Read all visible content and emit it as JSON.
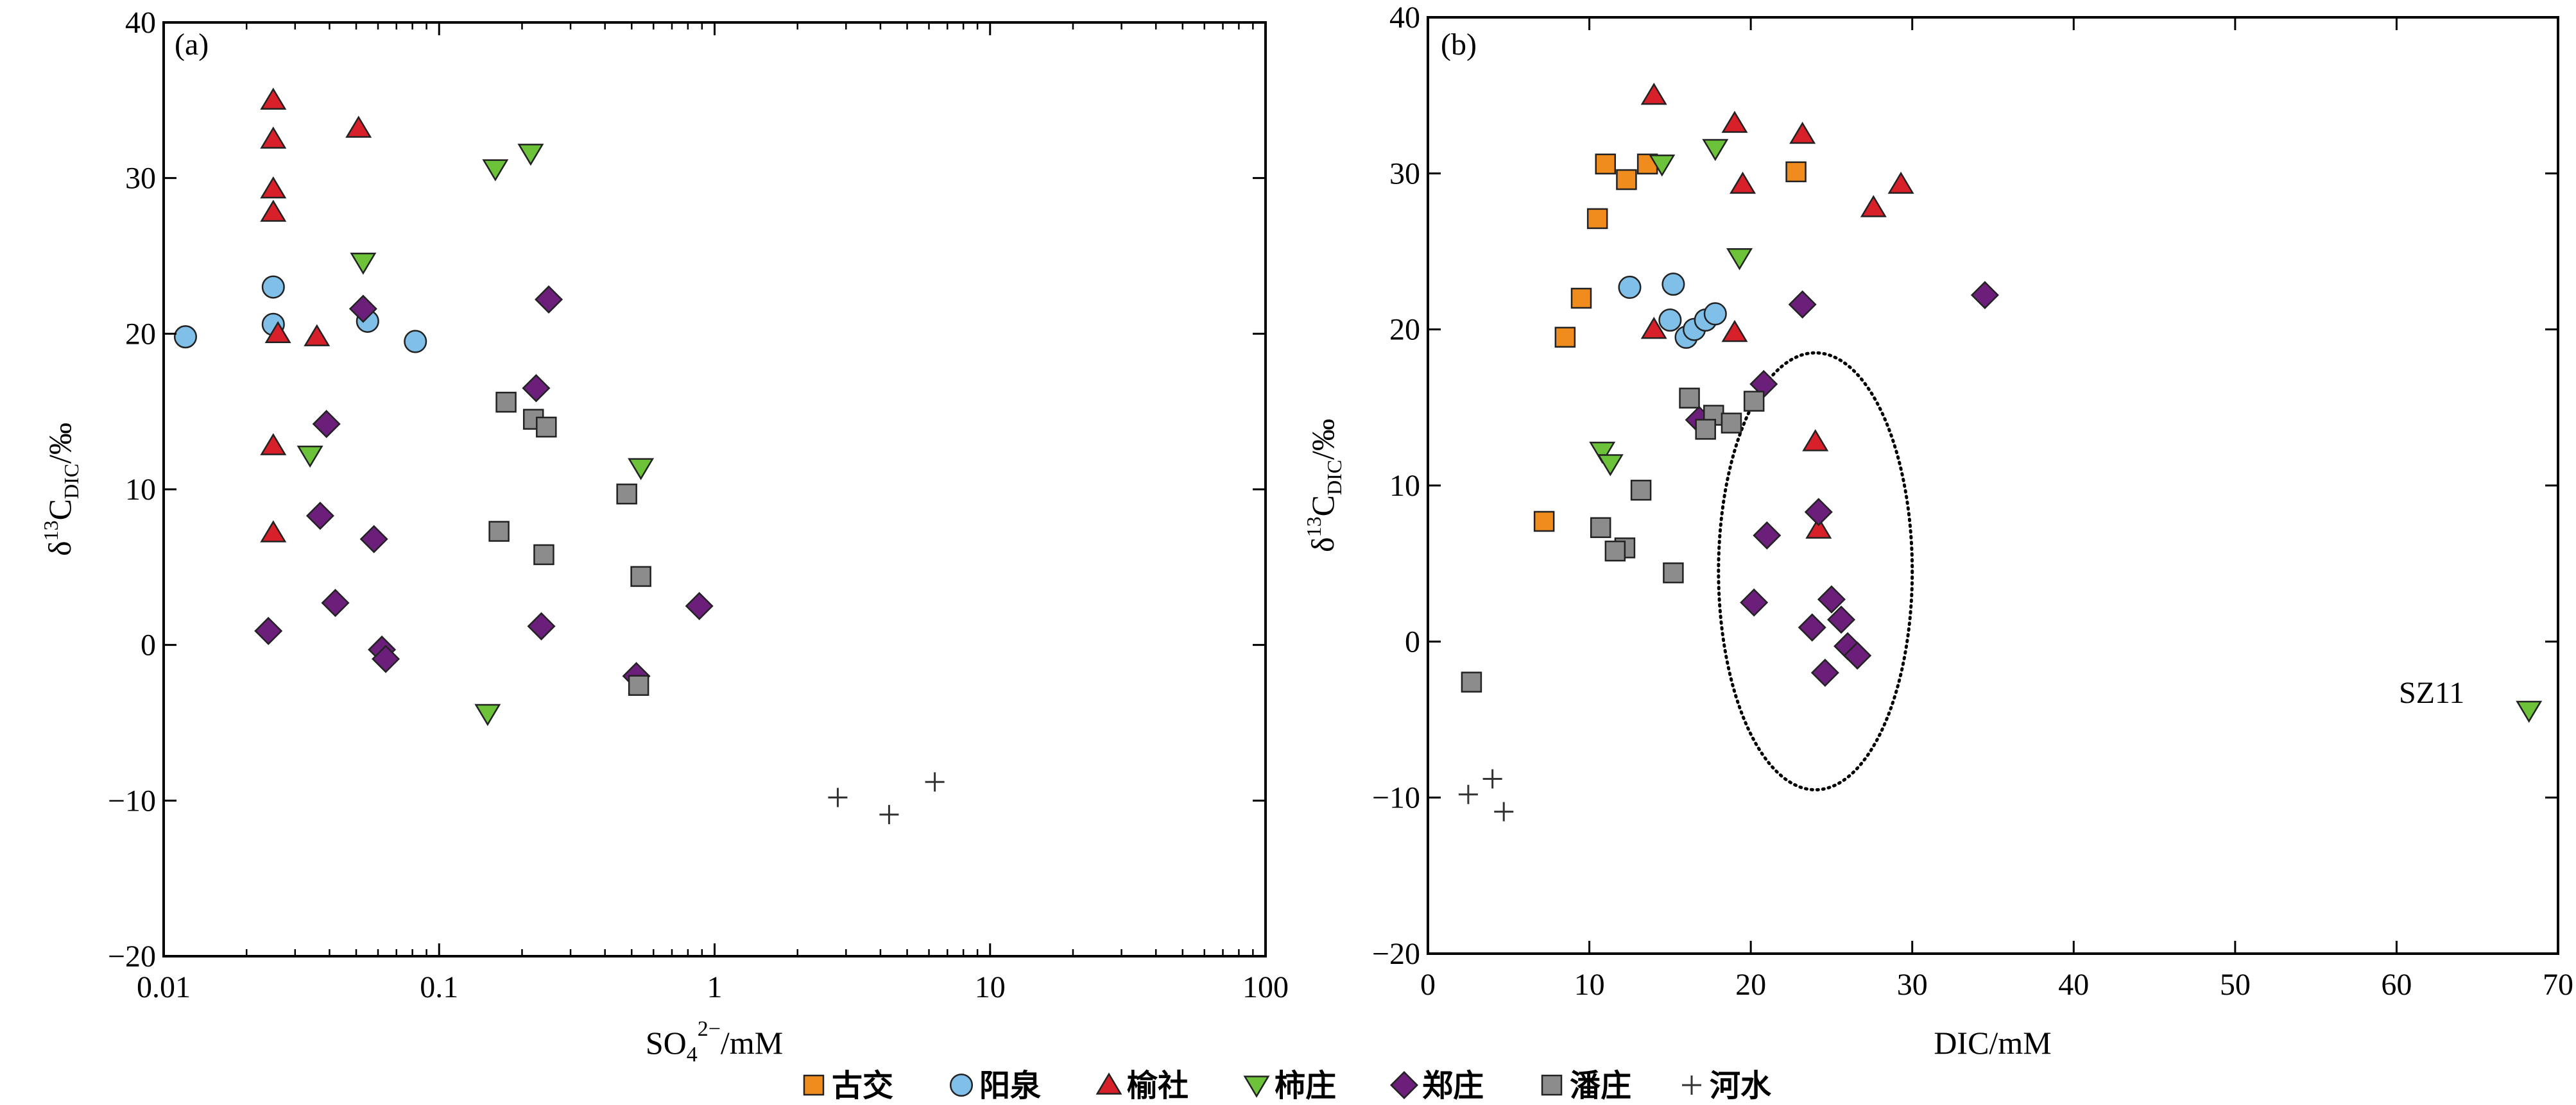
{
  "legend": [
    {
      "label": "古交",
      "shape": "square",
      "color": "#f08c1e"
    },
    {
      "label": "阳泉",
      "shape": "circle",
      "color": "#7fbfe8"
    },
    {
      "label": "榆社",
      "shape": "triangle-up",
      "color": "#d7202a"
    },
    {
      "label": "柿庄",
      "shape": "triangle-down",
      "color": "#6cc33a"
    },
    {
      "label": "郑庄",
      "shape": "diamond",
      "color": "#6b1f7a"
    },
    {
      "label": "潘庄",
      "shape": "square",
      "color": "#8c8c8c"
    },
    {
      "label": "河水",
      "shape": "plus",
      "color": "#000000"
    }
  ],
  "chart_data": [
    {
      "type": "scatter",
      "panel_label": "(a)",
      "xlabel_main": "SO",
      "xlabel_sub": "4",
      "xlabel_sup": "2−",
      "xlabel_rest": "/mM",
      "ylabel_main": "δ",
      "ylabel_sup": "13",
      "ylabel_c": "C",
      "ylabel_sub": "DIC",
      "ylabel_rest": "/‰",
      "xscale": "log",
      "xlim": [
        0.01,
        100
      ],
      "ylim": [
        -20,
        40
      ],
      "xticks": [
        0.01,
        0.1,
        1,
        10,
        100
      ],
      "xtick_labels": [
        "0.01",
        "0.1",
        "1",
        "10",
        "100"
      ],
      "yticks": [
        -20,
        -10,
        0,
        10,
        20,
        30,
        40
      ],
      "ytick_labels": [
        "−20",
        "−10",
        "0",
        "10",
        "20",
        "30",
        "40"
      ],
      "series": [
        {
          "name": "阳泉",
          "points": [
            [
              0.012,
              19.8
            ],
            [
              0.025,
              23.0
            ],
            [
              0.025,
              20.6
            ],
            [
              0.055,
              20.8
            ],
            [
              0.082,
              19.5
            ]
          ]
        },
        {
          "name": "榆社",
          "points": [
            [
              0.025,
              35.0
            ],
            [
              0.025,
              32.5
            ],
            [
              0.025,
              29.3
            ],
            [
              0.025,
              27.8
            ],
            [
              0.026,
              20.0
            ],
            [
              0.036,
              19.8
            ],
            [
              0.025,
              12.8
            ],
            [
              0.025,
              7.2
            ],
            [
              0.051,
              33.2
            ]
          ]
        },
        {
          "name": "柿庄",
          "points": [
            [
              0.034,
              12.2
            ],
            [
              0.053,
              24.6
            ],
            [
              0.16,
              30.6
            ],
            [
              0.215,
              31.6
            ],
            [
              0.15,
              -4.4
            ],
            [
              0.54,
              11.4
            ]
          ]
        },
        {
          "name": "郑庄",
          "points": [
            [
              0.053,
              21.6
            ],
            [
              0.039,
              14.2
            ],
            [
              0.037,
              8.3
            ],
            [
              0.058,
              6.8
            ],
            [
              0.042,
              2.7
            ],
            [
              0.024,
              0.9
            ],
            [
              0.062,
              -0.3
            ],
            [
              0.064,
              -0.9
            ],
            [
              0.25,
              22.2
            ],
            [
              0.225,
              16.5
            ],
            [
              0.235,
              1.2
            ],
            [
              0.52,
              -2.0
            ],
            [
              0.88,
              2.5
            ]
          ]
        },
        {
          "name": "潘庄",
          "points": [
            [
              0.175,
              15.6
            ],
            [
              0.22,
              14.5
            ],
            [
              0.245,
              14.0
            ],
            [
              0.165,
              7.3
            ],
            [
              0.24,
              5.8
            ],
            [
              0.48,
              9.7
            ],
            [
              0.54,
              4.4
            ],
            [
              0.53,
              -2.6
            ]
          ]
        },
        {
          "name": "河水",
          "points": [
            [
              2.8,
              -9.8
            ],
            [
              4.3,
              -10.9
            ],
            [
              6.3,
              -8.8
            ]
          ]
        }
      ]
    },
    {
      "type": "scatter",
      "panel_label": "(b)",
      "xlabel": "DIC/mM",
      "ylabel_main": "δ",
      "ylabel_sup": "13",
      "ylabel_c": "C",
      "ylabel_sub": "DIC",
      "ylabel_rest": "/‰",
      "xlim": [
        0,
        70
      ],
      "ylim": [
        -20,
        40
      ],
      "xticks": [
        0,
        10,
        20,
        30,
        40,
        50,
        60,
        70
      ],
      "xtick_labels": [
        "0",
        "10",
        "20",
        "30",
        "40",
        "50",
        "60",
        "70"
      ],
      "yticks": [
        -20,
        -10,
        0,
        10,
        20,
        30,
        40
      ],
      "ytick_labels": [
        "−20",
        "−10",
        "0",
        "10",
        "20",
        "30",
        "40"
      ],
      "annotation": {
        "text": "SZ11",
        "x": 68,
        "y": -4.4
      },
      "ellipse": {
        "cx": 24,
        "cy": 4.5,
        "rx": 6,
        "ry": 14
      },
      "series": [
        {
          "name": "古交",
          "points": [
            [
              8.5,
              19.5
            ],
            [
              9.5,
              22.0
            ],
            [
              10.5,
              27.1
            ],
            [
              11.0,
              30.6
            ],
            [
              12.3,
              29.6
            ],
            [
              13.6,
              30.6
            ],
            [
              22.8,
              30.1
            ],
            [
              7.2,
              7.7
            ]
          ]
        },
        {
          "name": "阳泉",
          "points": [
            [
              12.5,
              22.7
            ],
            [
              15.2,
              22.9
            ],
            [
              15.0,
              20.6
            ],
            [
              16.0,
              19.5
            ],
            [
              16.5,
              20.0
            ],
            [
              17.2,
              20.6
            ],
            [
              17.8,
              21.0
            ]
          ]
        },
        {
          "name": "榆社",
          "points": [
            [
              14.0,
              35.0
            ],
            [
              19.0,
              33.2
            ],
            [
              23.2,
              32.5
            ],
            [
              19.5,
              29.3
            ],
            [
              29.3,
              29.3
            ],
            [
              27.6,
              27.8
            ],
            [
              14.0,
              20.0
            ],
            [
              19.0,
              19.8
            ],
            [
              24.0,
              12.8
            ],
            [
              24.2,
              7.2
            ]
          ]
        },
        {
          "name": "柿庄",
          "points": [
            [
              14.5,
              30.6
            ],
            [
              17.8,
              31.6
            ],
            [
              19.3,
              24.6
            ],
            [
              10.8,
              12.2
            ],
            [
              11.3,
              11.4
            ],
            [
              68.2,
              -4.4
            ]
          ]
        },
        {
          "name": "郑庄",
          "points": [
            [
              23.2,
              21.6
            ],
            [
              34.5,
              22.2
            ],
            [
              20.8,
              16.5
            ],
            [
              16.8,
              14.2
            ],
            [
              24.2,
              8.3
            ],
            [
              21.0,
              6.8
            ],
            [
              20.2,
              2.5
            ],
            [
              25.0,
              2.7
            ],
            [
              25.6,
              1.4
            ],
            [
              23.8,
              0.9
            ],
            [
              26.0,
              -0.3
            ],
            [
              26.6,
              -0.9
            ],
            [
              24.6,
              -2.0
            ]
          ]
        },
        {
          "name": "潘庄",
          "points": [
            [
              16.2,
              15.6
            ],
            [
              17.7,
              14.5
            ],
            [
              20.2,
              15.4
            ],
            [
              18.8,
              14.0
            ],
            [
              17.2,
              13.6
            ],
            [
              13.2,
              9.7
            ],
            [
              10.7,
              7.3
            ],
            [
              12.2,
              6.0
            ],
            [
              11.6,
              5.8
            ],
            [
              15.2,
              4.4
            ],
            [
              2.7,
              -2.6
            ]
          ]
        },
        {
          "name": "河水",
          "points": [
            [
              2.5,
              -9.8
            ],
            [
              4.0,
              -8.8
            ],
            [
              4.7,
              -10.9
            ]
          ]
        }
      ]
    }
  ]
}
